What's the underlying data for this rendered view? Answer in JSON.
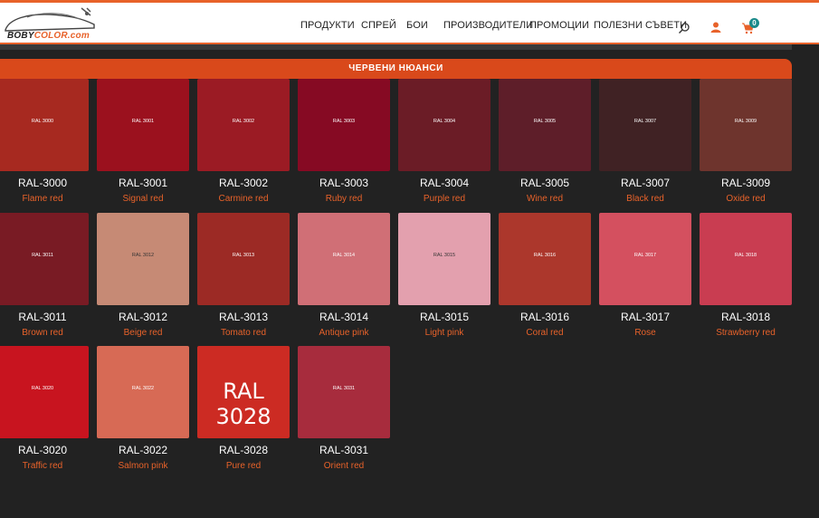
{
  "brand": {
    "part_a": "BOBY",
    "part_b": "COLOR.com"
  },
  "nav": {
    "items": [
      "ПРОДУКТИ",
      "СПРЕЙ",
      "БОИ",
      "ПРОИЗВОДИТЕЛИ",
      "ПРОМОЦИИ",
      "ПОЛЕЗНИ СЪВЕТИ"
    ],
    "cart_count": "0",
    "icons": [
      "search-icon",
      "user-icon",
      "cart-icon"
    ]
  },
  "section": {
    "title": "ЧЕРВЕНИ НЮАНСИ"
  },
  "colors": [
    {
      "code": "RAL-3000",
      "name": "Flame red",
      "swatch_label": "RAL 3000",
      "hex": "#a72920"
    },
    {
      "code": "RAL-3001",
      "name": "Signal red",
      "swatch_label": "RAL 3001",
      "hex": "#9b111e"
    },
    {
      "code": "RAL-3002",
      "name": "Carmine red",
      "swatch_label": "RAL 3002",
      "hex": "#9b1b24"
    },
    {
      "code": "RAL-3003",
      "name": "Ruby red",
      "swatch_label": "RAL 3003",
      "hex": "#860a23"
    },
    {
      "code": "RAL-3004",
      "name": "Purple red",
      "swatch_label": "RAL 3004",
      "hex": "#6b1c26"
    },
    {
      "code": "RAL-3005",
      "name": "Wine red",
      "swatch_label": "RAL 3005",
      "hex": "#5e1e29"
    },
    {
      "code": "RAL-3007",
      "name": "Black red",
      "swatch_label": "RAL 3007",
      "hex": "#402224"
    },
    {
      "code": "RAL-3009",
      "name": "Oxide red",
      "swatch_label": "RAL 3009",
      "hex": "#6e342d"
    },
    {
      "code": "RAL-3011",
      "name": "Brown red",
      "swatch_label": "RAL 3011",
      "hex": "#791b24"
    },
    {
      "code": "RAL-3012",
      "name": "Beige red",
      "swatch_label": "RAL 3012",
      "hex": "#c68a75"
    },
    {
      "code": "RAL-3013",
      "name": "Tomato red",
      "swatch_label": "RAL 3013",
      "hex": "#9c2a25"
    },
    {
      "code": "RAL-3014",
      "name": "Antique pink",
      "swatch_label": "RAL 3014",
      "hex": "#d06f76"
    },
    {
      "code": "RAL-3015",
      "name": "Light pink",
      "swatch_label": "RAL 3015",
      "hex": "#e3a0ae"
    },
    {
      "code": "RAL-3016",
      "name": "Coral red",
      "swatch_label": "RAL 3016",
      "hex": "#ac372c"
    },
    {
      "code": "RAL-3017",
      "name": "Rose",
      "swatch_label": "RAL 3017",
      "hex": "#d4505f"
    },
    {
      "code": "RAL-3018",
      "name": "Strawberry red",
      "swatch_label": "RAL 3018",
      "hex": "#c93d51"
    },
    {
      "code": "RAL-3020",
      "name": "Traffic red",
      "swatch_label": "RAL 3020",
      "hex": "#c8141f"
    },
    {
      "code": "RAL-3022",
      "name": "Salmon pink",
      "swatch_label": "RAL 3022",
      "hex": "#d76a55"
    },
    {
      "code": "RAL-3028",
      "name": "Pure red",
      "swatch_label": "RAL 3028",
      "hex": "#cc2b23"
    },
    {
      "code": "RAL-3031",
      "name": "Orient red",
      "swatch_label": "RAL 3031",
      "hex": "#a72c3d"
    }
  ],
  "theme": {
    "accent": "#e8622a",
    "section_bar": "#d9491b",
    "background": "#222222",
    "badge": "#1a8a8a"
  }
}
